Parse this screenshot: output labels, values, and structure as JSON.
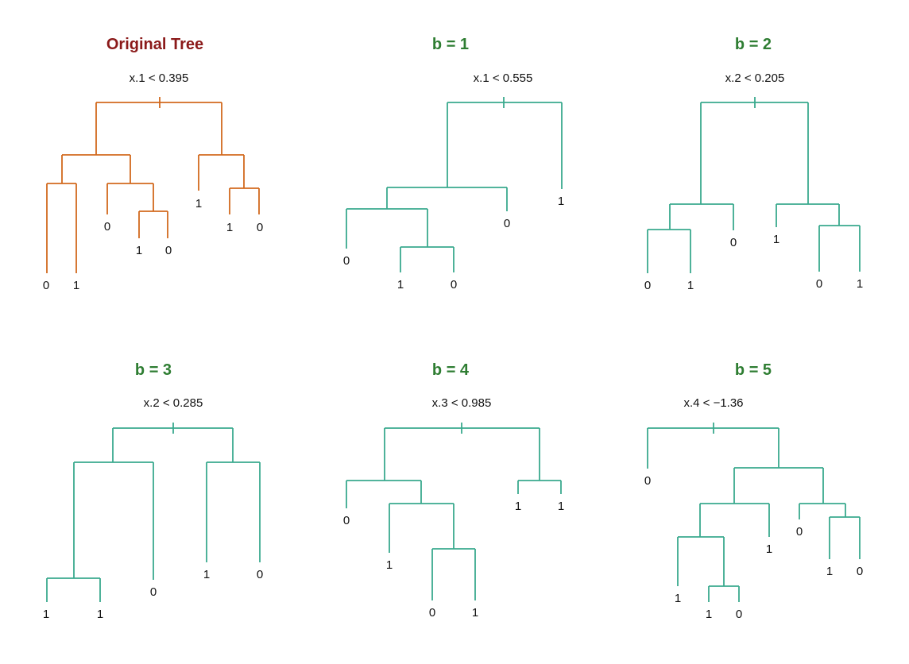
{
  "colors": {
    "original_tree": "#d2691e",
    "bootstrap_tree": "#3aaa8e",
    "original_title": "#8b1a1a",
    "bootstrap_title": "#2e7d32"
  },
  "panels": [
    {
      "title": "Original Tree",
      "root_split": "x.1 < 0.395",
      "variant": "original",
      "leaves": [
        "0",
        "1",
        "0",
        "1",
        "0",
        "1",
        "1",
        "0"
      ]
    },
    {
      "title": "b = 1",
      "root_split": "x.1 < 0.555",
      "variant": "bootstrap",
      "leaves": [
        "0",
        "1",
        "0",
        "0",
        "1"
      ]
    },
    {
      "title": "b = 2",
      "root_split": "x.2 < 0.205",
      "variant": "bootstrap",
      "leaves": [
        "0",
        "1",
        "0",
        "1",
        "0",
        "1"
      ]
    },
    {
      "title": "b = 3",
      "root_split": "x.2 < 0.285",
      "variant": "bootstrap",
      "leaves": [
        "1",
        "1",
        "0",
        "1",
        "0"
      ]
    },
    {
      "title": "b = 4",
      "root_split": "x.3 < 0.985",
      "variant": "bootstrap",
      "leaves": [
        "0",
        "1",
        "0",
        "1",
        "1",
        "1"
      ]
    },
    {
      "title": "b = 5",
      "root_split": "x.4 < −1.36",
      "variant": "bootstrap",
      "leaves": [
        "0",
        "1",
        "1",
        "0",
        "1",
        "0",
        "1",
        "0"
      ]
    }
  ]
}
